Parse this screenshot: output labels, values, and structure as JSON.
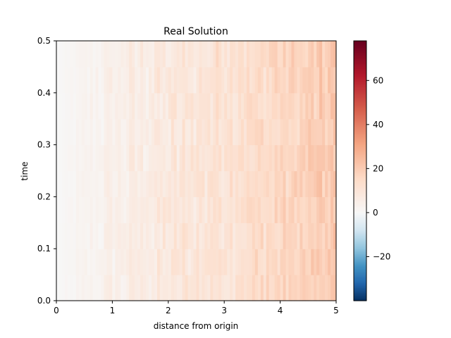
{
  "chart_data": {
    "type": "heatmap",
    "title": "Real Solution",
    "xlabel": "distance from origin",
    "ylabel": "time",
    "xlim": [
      0,
      5
    ],
    "ylim": [
      0,
      0.5
    ],
    "x_ticks": [
      {
        "value": 0,
        "label": "0"
      },
      {
        "value": 1,
        "label": "1"
      },
      {
        "value": 2,
        "label": "2"
      },
      {
        "value": 3,
        "label": "3"
      },
      {
        "value": 4,
        "label": "4"
      },
      {
        "value": 5,
        "label": "5"
      }
    ],
    "y_ticks": [
      {
        "value": 0.0,
        "label": "0.0"
      },
      {
        "value": 0.1,
        "label": "0.1"
      },
      {
        "value": 0.2,
        "label": "0.2"
      },
      {
        "value": 0.3,
        "label": "0.3"
      },
      {
        "value": 0.4,
        "label": "0.4"
      },
      {
        "value": 0.5,
        "label": "0.5"
      }
    ],
    "grid": false,
    "colormap": "RdBu_r",
    "colorbar": {
      "min": -40,
      "max": 78,
      "center": 0,
      "ticks": [
        {
          "value": 60,
          "label": "60"
        },
        {
          "value": 40,
          "label": "40"
        },
        {
          "value": 20,
          "label": "20"
        },
        {
          "value": 0,
          "label": "0"
        },
        {
          "value": -20,
          "label": "−20"
        }
      ]
    },
    "grid_shape": {
      "x_cells": 100,
      "t_cells": 10
    },
    "value_trend": "increases roughly linearly with distance from about 0 at x=0 to about 20 at x=5, with noisy column-wise variation of several units",
    "value_range_observed": [
      0,
      30
    ]
  }
}
